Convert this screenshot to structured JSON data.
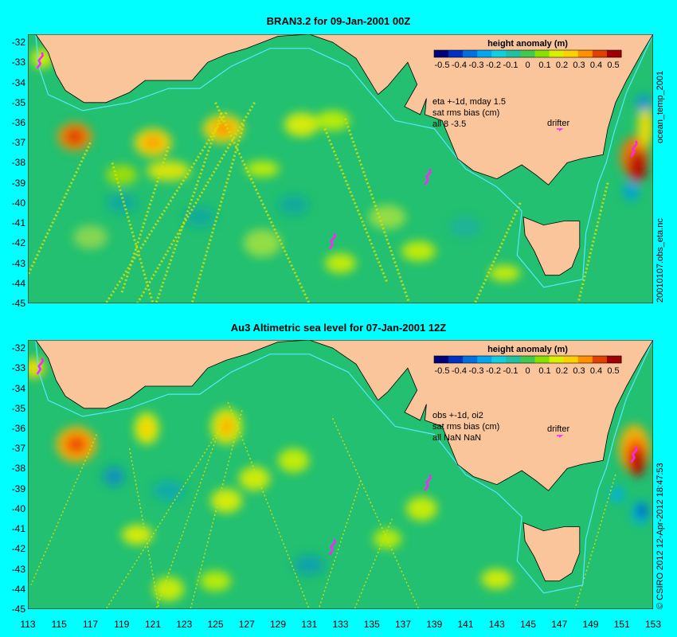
{
  "panels": [
    {
      "title": "BRAN3.2 for 09-Jan-2001 00Z",
      "legend_title": "height anomaly (m)",
      "legend_ticks": [
        "-0.5",
        "-0.4",
        "-0.3",
        "-0.2",
        "-0.1",
        "0",
        "0.1",
        "0.2",
        "0.3",
        "0.4",
        "0.5"
      ],
      "info_lines": [
        "eta +-1d, mday 1.5",
        "sat rms bias (cm)",
        "all 8 -3.5"
      ],
      "drifter_label": "drifter",
      "side_label": "20010107.obs_eta.nc",
      "top_right_label": "ocean_temp_2001"
    },
    {
      "title": "Au3 Altimetric sea level  for 07-Jan-2001 12Z",
      "legend_title": "height anomaly (m)",
      "legend_ticks": [
        "-0.5",
        "-0.4",
        "-0.3",
        "-0.2",
        "-0.1",
        "0",
        "0.1",
        "0.2",
        "0.3",
        "0.4",
        "0.5"
      ],
      "info_lines": [
        "obs +-1d, oi2",
        "sat rms bias (cm)",
        "all NaN NaN"
      ],
      "drifter_label": "drifter",
      "side_label": "© CSIRO  2012   12-Apr-2012 18:47:53"
    }
  ],
  "y_ticks": [
    "-32",
    "-33",
    "-34",
    "-35",
    "-36",
    "-37",
    "-38",
    "-39",
    "-40",
    "-41",
    "-42",
    "-43",
    "-44",
    "-45"
  ],
  "x_ticks": [
    "113",
    "115",
    "117",
    "119",
    "121",
    "123",
    "125",
    "127",
    "129",
    "131",
    "133",
    "135",
    "137",
    "139",
    "141",
    "143",
    "145",
    "147",
    "149",
    "151",
    "153"
  ],
  "colors": {
    "background": "#00ffff",
    "land": "#fbc59b",
    "ocean": "#22c070",
    "shelf_line": "#55e8ff",
    "drifter": "#ff22ff"
  }
}
